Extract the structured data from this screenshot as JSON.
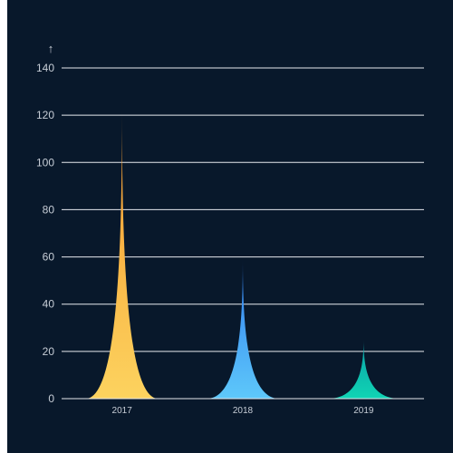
{
  "chart_data": {
    "type": "bar",
    "bar_shape": "spike",
    "categories": [
      "2017",
      "2018",
      "2019"
    ],
    "values": [
      122,
      59,
      25
    ],
    "ylim": [
      0,
      140
    ],
    "yticks": [
      0,
      20,
      40,
      60,
      80,
      100,
      120,
      140
    ],
    "ytick_labels": [
      "0",
      "20",
      "40",
      "60",
      "80",
      "100",
      "120",
      "140"
    ],
    "title": "",
    "xlabel": "",
    "ylabel": "",
    "grid": true,
    "legend": "none",
    "y_axis_marker": "↑",
    "colors": {
      "background": "#08182b",
      "grid": "#e6e9ee",
      "text": "#c6cdd6",
      "bars": [
        {
          "top": "#f7972c",
          "bottom": "#fcd35f"
        },
        {
          "top": "#2e7bf0",
          "bottom": "#5ec8fa"
        },
        {
          "top": "#0a9fa6",
          "bottom": "#10d4b4"
        }
      ]
    }
  }
}
